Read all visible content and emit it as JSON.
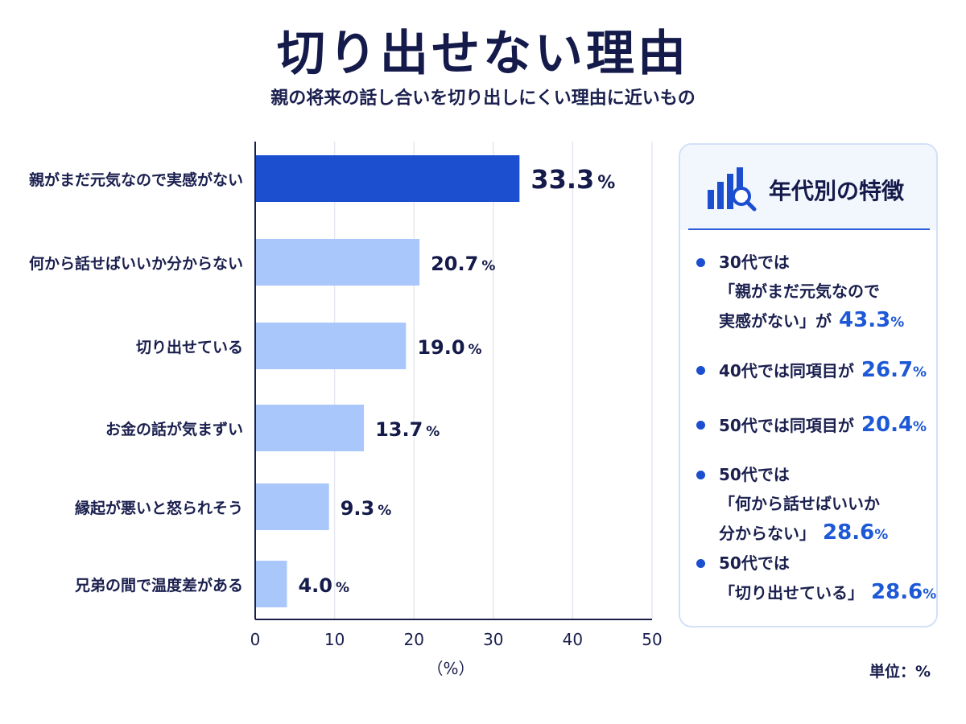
{
  "title": "切り出せない理由",
  "subtitle": "親の将来の話し合いを切り出しにくい理由に近いもの",
  "colors": {
    "highlight": "#1b4fd0",
    "bar": "#a9c7fb",
    "accent": "#1d58d6",
    "text": "#1a1f4e"
  },
  "chart_data": {
    "type": "bar",
    "orientation": "horizontal",
    "categories": [
      "親がまだ元気なので実感がない",
      "何から話せばいいか分からない",
      "切り出せている",
      "お金の話が気まずい",
      "縁起が悪いと怒られそう",
      "兄弟の間で温度差がある"
    ],
    "values": [
      33.3,
      20.7,
      19.0,
      13.7,
      9.3,
      4.0
    ],
    "value_labels": [
      "33.3",
      "20.7",
      "19.0",
      "13.7",
      "9.3",
      "4.0"
    ],
    "value_suffix": "%",
    "highlight_index": 0,
    "xlim": [
      0,
      50
    ],
    "xticks": [
      0,
      10,
      20,
      30,
      40,
      50
    ],
    "xlabel": "（%）",
    "grid": true
  },
  "panel": {
    "icon": "bar-chart-search-icon",
    "title": "年代別の特徴",
    "items": [
      {
        "lines": [
          "30代では",
          "「親がまだ元気なので",
          "実感がない」が"
        ],
        "value": "43.3",
        "suffix": "%"
      },
      {
        "lines": [
          "40代では同項目が"
        ],
        "value": "26.7",
        "suffix": "%"
      },
      {
        "lines": [
          "50代では同項目が"
        ],
        "value": "20.4",
        "suffix": "%"
      },
      {
        "lines": [
          "50代では",
          "「何から話せばいいか",
          "分からない」"
        ],
        "value": "28.6",
        "suffix": "%"
      },
      {
        "lines": [
          "50代では",
          "「切り出せている」"
        ],
        "value": "28.6",
        "suffix": "%"
      }
    ]
  },
  "unit_note": "単位：%"
}
